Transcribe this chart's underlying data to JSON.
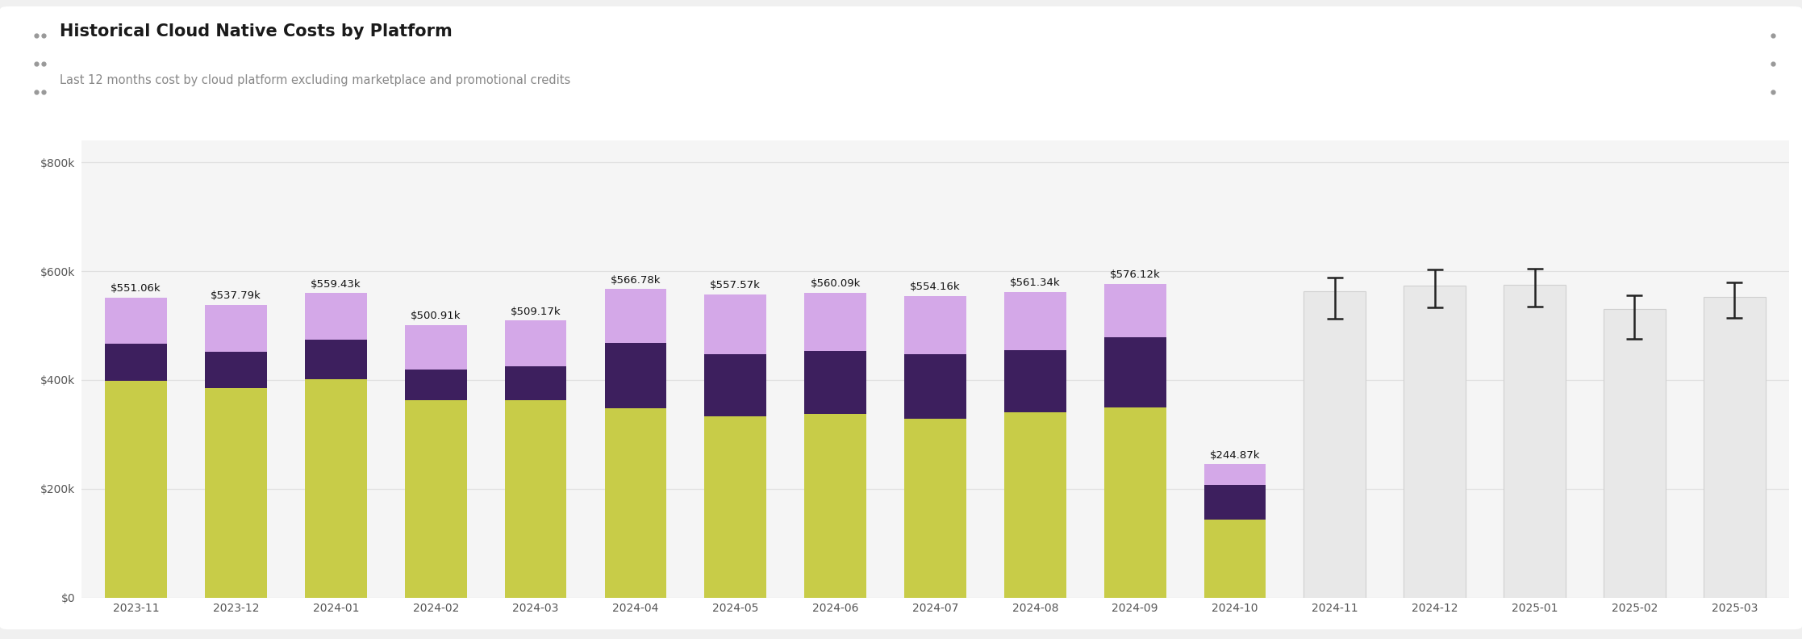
{
  "title": "Historical Cloud Native Costs by Platform",
  "subtitle": "Last 12 months cost by cloud platform excluding marketplace and promotional credits",
  "categories": [
    "2023-11",
    "2023-12",
    "2024-01",
    "2024-02",
    "2024-03",
    "2024-04",
    "2024-05",
    "2024-06",
    "2024-07",
    "2024-08",
    "2024-09",
    "2024-10",
    "2024-11",
    "2024-12",
    "2025-01",
    "2025-02",
    "2025-03"
  ],
  "bar_totals": [
    "$551.06k",
    "$537.79k",
    "$559.43k",
    "$500.91k",
    "$509.17k",
    "$566.78k",
    "$557.57k",
    "$560.09k",
    "$554.16k",
    "$561.34k",
    "$576.12k",
    "$244.87k",
    "",
    "",
    "",
    "",
    ""
  ],
  "layer1": [
    398000,
    385000,
    402000,
    363000,
    363000,
    348000,
    333000,
    338000,
    328000,
    340000,
    350000,
    143000,
    0,
    0,
    0,
    0,
    0
  ],
  "layer2": [
    68000,
    67000,
    72000,
    56000,
    62000,
    120000,
    115000,
    115000,
    120000,
    115000,
    128000,
    64000,
    0,
    0,
    0,
    0,
    0
  ],
  "layer3": [
    85060,
    85790,
    85430,
    81910,
    84170,
    98780,
    109570,
    107090,
    106160,
    106340,
    98120,
    37870,
    0,
    0,
    0,
    0,
    0
  ],
  "forecast_values": [
    0,
    0,
    0,
    0,
    0,
    0,
    0,
    0,
    0,
    0,
    0,
    0,
    563000,
    573000,
    575000,
    530000,
    552000
  ],
  "forecast_errors_low": [
    0,
    0,
    0,
    0,
    0,
    0,
    0,
    0,
    0,
    0,
    0,
    0,
    50000,
    40000,
    40000,
    55000,
    38000
  ],
  "forecast_errors_high": [
    0,
    0,
    0,
    0,
    0,
    0,
    0,
    0,
    0,
    0,
    0,
    0,
    25000,
    30000,
    30000,
    25000,
    28000
  ],
  "color_layer1": "#c8cc48",
  "color_layer2": "#3d1f5e",
  "color_layer3": "#d4a8e8",
  "color_forecast": "#e8e8e8",
  "color_forecast_border": "#d0d0d0",
  "color_error_bar": "#222222",
  "background_outer": "#f0f0f0",
  "background_card": "#ffffff",
  "background_chart": "#f5f5f5",
  "divider_color": "#e0e0e0",
  "ylim": [
    0,
    840000
  ],
  "yticks": [
    0,
    200000,
    400000,
    600000,
    800000
  ],
  "ytick_labels": [
    "$0",
    "$200k",
    "$400k",
    "$600k",
    "$800k"
  ],
  "grid_color": "#e0e0e0",
  "title_fontsize": 15,
  "subtitle_fontsize": 10.5,
  "tick_fontsize": 10,
  "label_fontsize": 9.5,
  "dot_color": "#999999"
}
